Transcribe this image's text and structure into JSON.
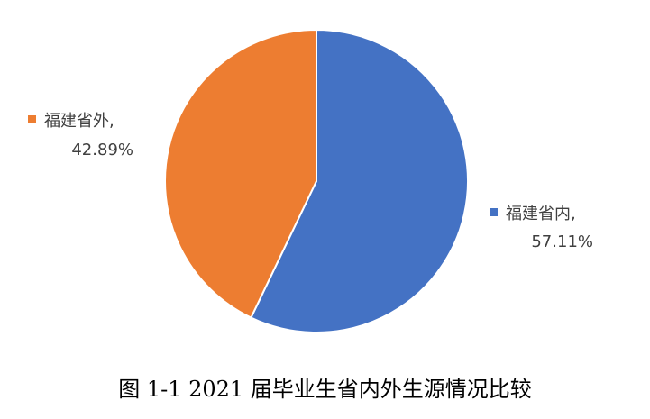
{
  "chart_data": {
    "type": "pie",
    "slices": [
      {
        "name": "福建省内",
        "value": 57.11,
        "label": "57.11%",
        "color": "#4472C4"
      },
      {
        "name": "福建省外",
        "value": 42.89,
        "label": "42.89%",
        "color": "#ED7D31"
      }
    ],
    "legend": "none",
    "data_labels": "outside"
  },
  "caption": "图 1-1 2021 届毕业生省内外生源情况比较"
}
